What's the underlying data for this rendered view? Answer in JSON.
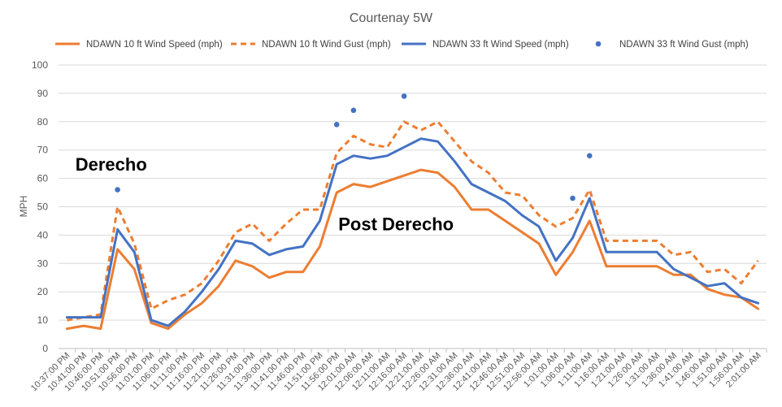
{
  "chart_data": {
    "type": "line",
    "title": "Courtenay 5W",
    "ylabel": "MPH",
    "xlabel": "",
    "ylim": [
      0,
      100
    ],
    "yticks": [
      0,
      10,
      20,
      30,
      40,
      50,
      60,
      70,
      80,
      90,
      100
    ],
    "grid": true,
    "legend_position": "top",
    "x": [
      "10:37:00 PM",
      "10:41:00 PM",
      "10:46:00 PM",
      "10:51:00 PM",
      "10:56:00 PM",
      "11:01:00 PM",
      "11:06:00 PM",
      "11:11:00 PM",
      "11:16:00 PM",
      "11:21:00 PM",
      "11:26:00 PM",
      "11:31:00 PM",
      "11:36:00 PM",
      "11:41:00 PM",
      "11:46:00 PM",
      "11:51:00 PM",
      "11:56:00 PM",
      "12:01:00 AM",
      "12:06:00 AM",
      "12:11:00 AM",
      "12:16:00 AM",
      "12:21:00 AM",
      "12:26:00 AM",
      "12:31:00 AM",
      "12:36:00 AM",
      "12:41:00 AM",
      "12:46:00 AM",
      "12:51:00 AM",
      "12:56:00 AM",
      "1:01:00 AM",
      "1:06:00 AM",
      "1:11:00 AM",
      "1:16:00 AM",
      "1:21:00 AM",
      "1:26:00 AM",
      "1:31:00 AM",
      "1:36:00 AM",
      "1:41:00 AM",
      "1:46:00 AM",
      "1:51:00 AM",
      "1:56:00 AM",
      "2:01:00 AM"
    ],
    "series": [
      {
        "name": "NDAWN 10 ft Wind Speed (mph)",
        "color": "#ED7D31",
        "style": "solid",
        "values": [
          7,
          8,
          7,
          35,
          28,
          9,
          7,
          12,
          16,
          22,
          31,
          29,
          25,
          27,
          27,
          36,
          55,
          58,
          57,
          59,
          61,
          63,
          62,
          57,
          49,
          49,
          45,
          41,
          37,
          26,
          34,
          45,
          29,
          29,
          29,
          29,
          26,
          26,
          21,
          19,
          18,
          14
        ]
      },
      {
        "name": "NDAWN 10 ft Wind Gust (mph)",
        "color": "#ED7D31",
        "style": "dashed",
        "values": [
          10,
          11,
          12,
          50,
          37,
          14,
          17,
          19,
          23,
          31,
          41,
          44,
          38,
          44,
          49,
          49,
          69,
          75,
          72,
          71,
          80,
          77,
          80,
          73,
          66,
          62,
          55,
          54,
          47,
          43,
          46,
          56,
          38,
          38,
          38,
          38,
          33,
          34,
          27,
          28,
          23,
          31
        ]
      },
      {
        "name": "NDAWN 33 ft Wind Speed (mph)",
        "color": "#4472C4",
        "style": "solid",
        "values": [
          11,
          11,
          11,
          42,
          34,
          10,
          8,
          13,
          20,
          28,
          38,
          37,
          33,
          35,
          36,
          45,
          65,
          68,
          67,
          68,
          71,
          74,
          73,
          66,
          58,
          55,
          52,
          47,
          43,
          31,
          39,
          53,
          34,
          34,
          34,
          34,
          28,
          25,
          22,
          23,
          18,
          16
        ]
      },
      {
        "name": "NDAWN 33 ft Wind Gust (mph)",
        "color": "#4472C4",
        "style": "markers",
        "values": [
          null,
          null,
          null,
          56,
          null,
          null,
          null,
          null,
          null,
          null,
          null,
          null,
          null,
          null,
          null,
          null,
          79,
          84,
          null,
          null,
          89,
          null,
          null,
          null,
          null,
          null,
          null,
          null,
          null,
          null,
          53,
          68,
          null,
          null,
          null,
          null,
          null,
          null,
          null,
          null,
          null,
          null
        ]
      }
    ],
    "annotations": [
      {
        "text": "Derecho",
        "x_index": 1,
        "y": 65
      },
      {
        "text": "Post Derecho",
        "x_index": 16.6,
        "y": 44
      }
    ]
  }
}
